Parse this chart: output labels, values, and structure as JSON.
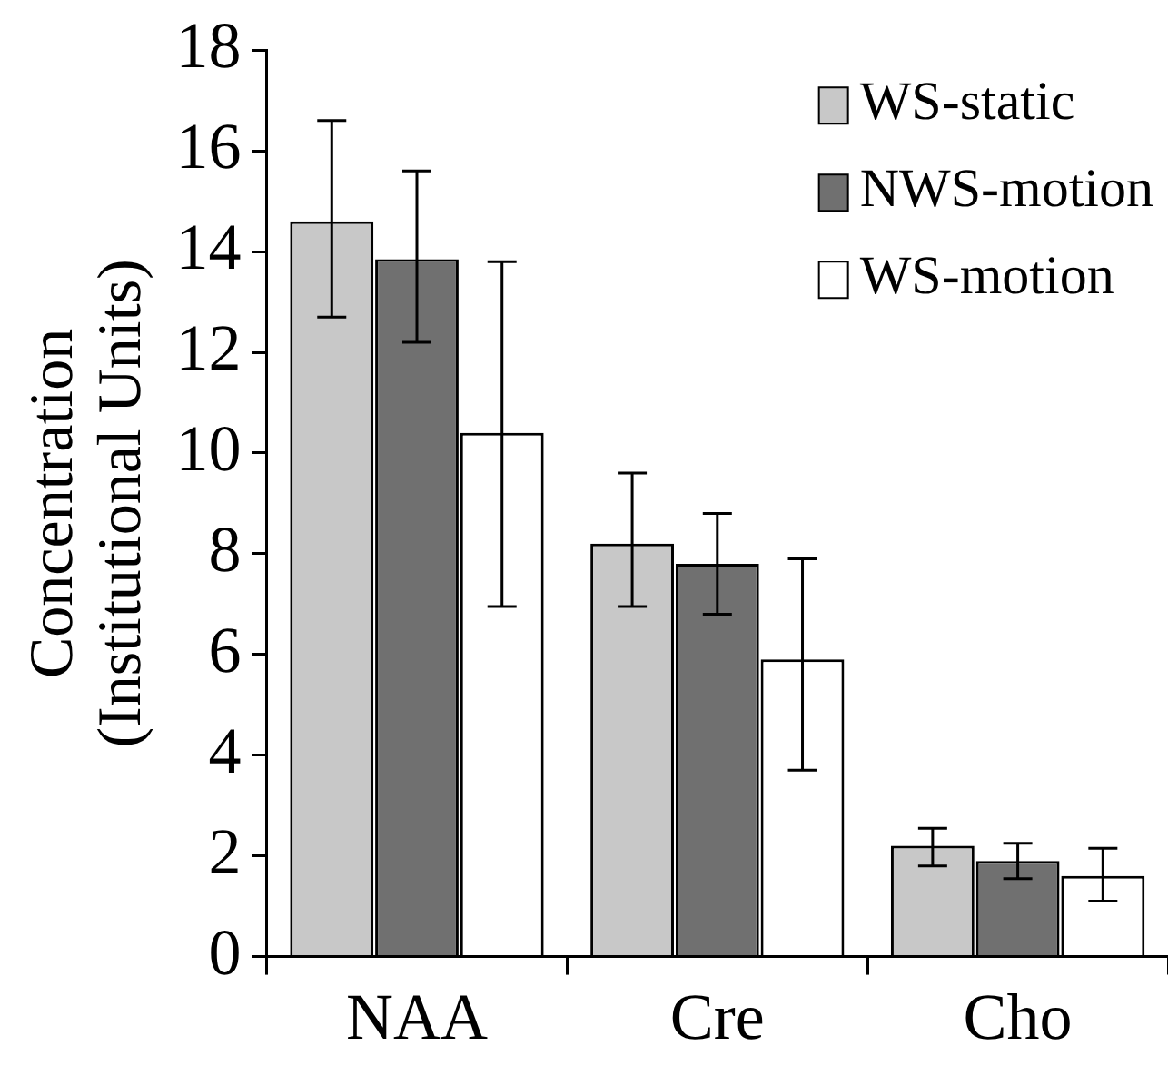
{
  "chart_data": {
    "type": "bar",
    "ylabel": "Concentration\n(Institutional Units)",
    "categories": [
      "NAA",
      "Cre",
      "Cho"
    ],
    "series": [
      {
        "name": "WS-static",
        "color": "#c8c8c8",
        "values": [
          14.6,
          8.2,
          2.2
        ],
        "errors": [
          [
            12.7,
            16.6
          ],
          [
            6.95,
            9.6
          ],
          [
            1.8,
            2.55
          ]
        ]
      },
      {
        "name": "NWS-motion",
        "color": "#707070",
        "values": [
          13.85,
          7.8,
          1.9
        ],
        "errors": [
          [
            12.2,
            15.6
          ],
          [
            6.8,
            8.8
          ],
          [
            1.55,
            2.25
          ]
        ]
      },
      {
        "name": "WS-motion",
        "color": "#ffffff",
        "values": [
          10.4,
          5.9,
          1.6
        ],
        "errors": [
          [
            6.95,
            13.8
          ],
          [
            3.7,
            7.9
          ],
          [
            1.1,
            2.15
          ]
        ]
      }
    ],
    "ylim": [
      0,
      18
    ],
    "yticks": [
      0,
      2,
      4,
      6,
      8,
      10,
      12,
      14,
      16,
      18
    ],
    "grid": false,
    "legend": "top right"
  }
}
